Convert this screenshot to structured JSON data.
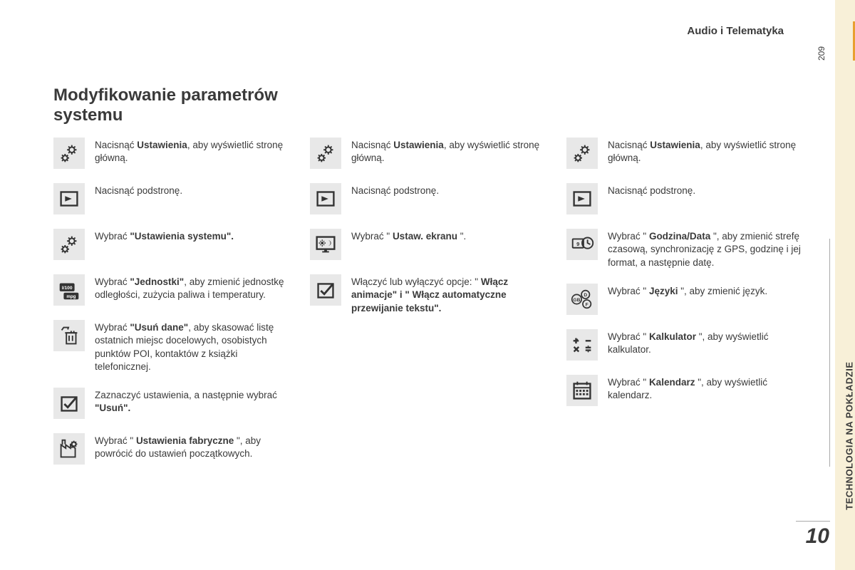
{
  "header": {
    "section": "Audio i Telematyka"
  },
  "heading": "Modyfikowanie parametrów systemu",
  "pageNumber": "209",
  "sideTab": "TECHNOLOGIA NA POKŁADZIE",
  "chapter": "10",
  "icon_bg": "#e8e8e8",
  "text_color": "#3a3a3a",
  "columns": [
    {
      "items": [
        {
          "icon": "gears",
          "pre": "Nacisnąć ",
          "bold": "Ustawienia",
          "post": ", aby wyświetlić stronę główną."
        },
        {
          "icon": "subpage",
          "pre": "Nacisnąć podstronę.",
          "bold": "",
          "post": ""
        },
        {
          "icon": "gears",
          "pre": "Wybrać ",
          "bold": "\"Ustawienia systemu\".",
          "post": ""
        },
        {
          "icon": "units",
          "pre": "Wybrać ",
          "bold": "\"Jednostki\"",
          "post": ", aby zmienić jednostkę odległości, zużycia paliwa i temperatury."
        },
        {
          "icon": "trash",
          "pre": "Wybrać ",
          "bold": "\"Usuń dane\"",
          "post": ", aby skasować listę ostatnich miejsc docelowych, osobistych punktów POI, kontaktów z książki telefonicznej."
        },
        {
          "icon": "check",
          "pre": "Zaznaczyć ustawienia, a następnie wybrać ",
          "bold": "\"Usuń\".",
          "post": ""
        },
        {
          "icon": "factory",
          "pre": "Wybrać \" ",
          "bold": "Ustawienia fabryczne",
          "post": " \", aby powrócić do ustawień początkowych."
        }
      ]
    },
    {
      "items": [
        {
          "icon": "gears",
          "pre": "Nacisnąć ",
          "bold": "Ustawienia",
          "post": ", aby wyświetlić stronę główną."
        },
        {
          "icon": "subpage",
          "pre": "Nacisnąć podstronę.",
          "bold": "",
          "post": ""
        },
        {
          "icon": "screen",
          "pre": "Wybrać \" ",
          "bold": "Ustaw. ekranu",
          "post": " \"."
        },
        {
          "icon": "check",
          "pre": "Włączyć lub wyłączyć opcje: \" ",
          "bold": "Włącz animacje\" i \" Włącz automatyczne przewijanie tekstu\".",
          "post": ""
        }
      ]
    },
    {
      "items": [
        {
          "icon": "gears",
          "pre": "Nacisnąć ",
          "bold": "Ustawienia",
          "post": ", aby wyświetlić stronę główną."
        },
        {
          "icon": "subpage",
          "pre": "Nacisnąć podstronę.",
          "bold": "",
          "post": ""
        },
        {
          "icon": "clock",
          "pre": "Wybrać \" ",
          "bold": "Godzina/Data",
          "post": " \", aby zmienić strefę czasową, synchronizację z GPS, godzinę i jej format, a następnie datę."
        },
        {
          "icon": "lang",
          "pre": "Wybrać \" ",
          "bold": "Języki",
          "post": " \", aby zmienić język."
        },
        {
          "icon": "calc",
          "pre": "Wybrać \" ",
          "bold": "Kalkulator",
          "post": " \", aby wyświetlić kalkulator."
        },
        {
          "icon": "calendar",
          "pre": "Wybrać \" ",
          "bold": "Kalendarz",
          "post": " \", aby wyświetlić kalendarz."
        }
      ]
    }
  ]
}
